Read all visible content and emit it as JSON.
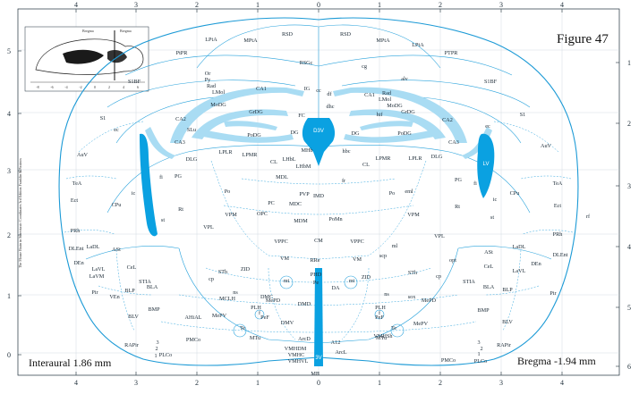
{
  "figure": {
    "title": "Figure 47",
    "interaural": "Interaural 1.86 mm",
    "bregma": "Bregma -1.94 mm",
    "side_note": "The Mouse Brain in Stereotaxic Coordinates 3rd Edition Franklin & Paxinos"
  },
  "inset": {
    "ticks": [
      "-8",
      "-6",
      "-4",
      "-2",
      "0",
      "2",
      "4",
      "6"
    ],
    "labels": [
      "Bregma",
      "Bregma"
    ]
  },
  "rulers": {
    "top": [
      "4",
      "3",
      "2",
      "1",
      "0",
      "1",
      "2",
      "3",
      "4"
    ],
    "bottom": [
      "4",
      "3",
      "2",
      "1",
      "0",
      "1",
      "2",
      "3",
      "4"
    ],
    "left": [
      "5",
      "4",
      "3",
      "2",
      "1",
      "0"
    ],
    "right": [
      "1",
      "2",
      "3",
      "4",
      "5",
      "6"
    ]
  },
  "regions": [
    {
      "t": "RSD"
    },
    {
      "t": "RSD"
    },
    {
      "t": "MPtA"
    },
    {
      "t": "MPtA"
    },
    {
      "t": "LPtA"
    },
    {
      "t": "LPtA"
    },
    {
      "t": "PtPR"
    },
    {
      "t": "PTPR"
    },
    {
      "t": "RSGc"
    },
    {
      "t": "S1BF"
    },
    {
      "t": "S1BF"
    },
    {
      "t": "cc"
    },
    {
      "t": "cg"
    },
    {
      "t": "IG"
    },
    {
      "t": "alv"
    },
    {
      "t": "Or"
    },
    {
      "t": "Py"
    },
    {
      "t": "Rad"
    },
    {
      "t": "Rad"
    },
    {
      "t": "LMol"
    },
    {
      "t": "LMol"
    },
    {
      "t": "CA1"
    },
    {
      "t": "CA1"
    },
    {
      "t": "MoDG"
    },
    {
      "t": "MoDG"
    },
    {
      "t": "GrDG"
    },
    {
      "t": "GrDG"
    },
    {
      "t": "df"
    },
    {
      "t": "dhc"
    },
    {
      "t": "hif"
    },
    {
      "t": "S1"
    },
    {
      "t": "S1"
    },
    {
      "t": "CA2"
    },
    {
      "t": "CA2"
    },
    {
      "t": "SLu"
    },
    {
      "t": "PoDG"
    },
    {
      "t": "PoDG"
    },
    {
      "t": "FC"
    },
    {
      "t": "DG"
    },
    {
      "t": "DG"
    },
    {
      "t": "D3V"
    },
    {
      "t": "CA3"
    },
    {
      "t": "CA3"
    },
    {
      "t": "ec"
    },
    {
      "t": "ec"
    },
    {
      "t": "AuV"
    },
    {
      "t": "AuV"
    },
    {
      "t": "DLG"
    },
    {
      "t": "DLG"
    },
    {
      "t": "LPLR"
    },
    {
      "t": "LPLR"
    },
    {
      "t": "LPMR"
    },
    {
      "t": "LPMR"
    },
    {
      "t": "MHb"
    },
    {
      "t": "LHbL"
    },
    {
      "t": "LHbM"
    },
    {
      "t": "hbc"
    },
    {
      "t": "CL"
    },
    {
      "t": "CL"
    },
    {
      "t": "LV"
    },
    {
      "t": "TeA"
    },
    {
      "t": "TeA"
    },
    {
      "t": "fi"
    },
    {
      "t": "fi"
    },
    {
      "t": "PG"
    },
    {
      "t": "PG"
    },
    {
      "t": "MDL"
    },
    {
      "t": "fr"
    },
    {
      "t": "Ect"
    },
    {
      "t": "Ect"
    },
    {
      "t": "ic"
    },
    {
      "t": "ic"
    },
    {
      "t": "CPu"
    },
    {
      "t": "CPu"
    },
    {
      "t": "Po"
    },
    {
      "t": "Po"
    },
    {
      "t": "PVP"
    },
    {
      "t": "IMD"
    },
    {
      "t": "eml"
    },
    {
      "t": "rf"
    },
    {
      "t": "st"
    },
    {
      "t": "st"
    },
    {
      "t": "Rt"
    },
    {
      "t": "Rt"
    },
    {
      "t": "PC"
    },
    {
      "t": "MDC"
    },
    {
      "t": "VPM"
    },
    {
      "t": "VPM"
    },
    {
      "t": "OPC"
    },
    {
      "t": "MDM"
    },
    {
      "t": "PoMn"
    },
    {
      "t": "VPL"
    },
    {
      "t": "VPL"
    },
    {
      "t": "PRh"
    },
    {
      "t": "PRh"
    },
    {
      "t": "DLEnt"
    },
    {
      "t": "DLEnt"
    },
    {
      "t": "CM"
    },
    {
      "t": "LaDL"
    },
    {
      "t": "LaDL"
    },
    {
      "t": "VPPC"
    },
    {
      "t": "VPPC"
    },
    {
      "t": "ml"
    },
    {
      "t": "ASt"
    },
    {
      "t": "ASt"
    },
    {
      "t": "DEn"
    },
    {
      "t": "DEn"
    },
    {
      "t": "VM"
    },
    {
      "t": "VM"
    },
    {
      "t": "RRe"
    },
    {
      "t": "scp"
    },
    {
      "t": "CeL"
    },
    {
      "t": "CeL"
    },
    {
      "t": "opt"
    },
    {
      "t": "LaVL"
    },
    {
      "t": "LaVL"
    },
    {
      "t": "LaVM"
    },
    {
      "t": "STh"
    },
    {
      "t": "STh"
    },
    {
      "t": "ZID"
    },
    {
      "t": "ZID"
    },
    {
      "t": "PHD"
    },
    {
      "t": "cp"
    },
    {
      "t": "cp"
    },
    {
      "t": "Pir"
    },
    {
      "t": "Pir"
    },
    {
      "t": "mt"
    },
    {
      "t": "mt"
    },
    {
      "t": "STIA"
    },
    {
      "t": "STIA"
    },
    {
      "t": "Pe"
    },
    {
      "t": "DA"
    },
    {
      "t": "BLP"
    },
    {
      "t": "BLP"
    },
    {
      "t": "BLA"
    },
    {
      "t": "BLA"
    },
    {
      "t": "VEn"
    },
    {
      "t": "ns"
    },
    {
      "t": "ns"
    },
    {
      "t": "DMC"
    },
    {
      "t": "sox"
    },
    {
      "t": "MePD"
    },
    {
      "t": "MePD"
    },
    {
      "t": "MCLH"
    },
    {
      "t": "DMD"
    },
    {
      "t": "PLH"
    },
    {
      "t": "PLH"
    },
    {
      "t": "BMP"
    },
    {
      "t": "BMP"
    },
    {
      "t": "AHiAL"
    },
    {
      "t": "MePV"
    },
    {
      "t": "MePV"
    },
    {
      "t": "PeF"
    },
    {
      "t": "PeF"
    },
    {
      "t": "f"
    },
    {
      "t": "f"
    },
    {
      "t": "DMV"
    },
    {
      "t": "BLV"
    },
    {
      "t": "BLV"
    },
    {
      "t": "Te"
    },
    {
      "t": "Te"
    },
    {
      "t": "VMHSh"
    },
    {
      "t": "MTu"
    },
    {
      "t": "MTu"
    },
    {
      "t": "ArcD"
    },
    {
      "t": "A12"
    },
    {
      "t": "VMHDM"
    },
    {
      "t": "VMHC"
    },
    {
      "t": "VMHVL"
    },
    {
      "t": "ArcL"
    },
    {
      "t": "RAPir"
    },
    {
      "t": "RAPir"
    },
    {
      "t": "PMCo"
    },
    {
      "t": "PMCo"
    },
    {
      "t": "PLCo"
    },
    {
      "t": "PLCo"
    },
    {
      "t": "3"
    },
    {
      "t": "2"
    },
    {
      "t": "1"
    },
    {
      "t": "3"
    },
    {
      "t": "2"
    },
    {
      "t": "1"
    },
    {
      "t": "3V"
    },
    {
      "t": "ME"
    }
  ],
  "colors": {
    "outline": "#1c9ad6",
    "ventricle": "#0aa1e1",
    "tract": "#a9dcf3",
    "text": "#1b2a36"
  }
}
